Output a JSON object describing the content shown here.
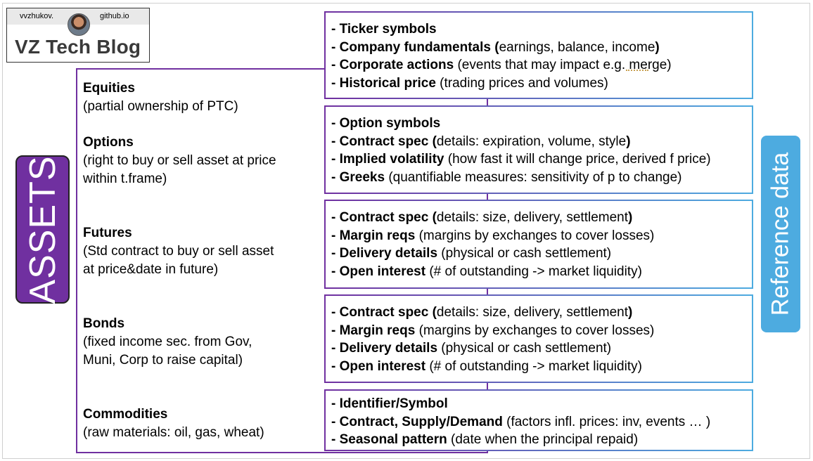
{
  "logo": {
    "handle": "vvzhukov.",
    "domain": "github.io",
    "title": "VZ Tech Blog"
  },
  "assets_label": "ASSETS",
  "reference_label": "Reference data",
  "colors": {
    "purple": "#7030a0",
    "blue": "#4dabe0"
  },
  "assets": [
    {
      "name": "Equities",
      "desc": [
        "(partial ownership of PTC)"
      ]
    },
    {
      "name": "Options",
      "desc": [
        "(right to buy or sell asset at price",
        "within t.frame)"
      ]
    },
    {
      "name": "Futures",
      "desc": [
        "(Std contract to buy or sell asset",
        "at price&date in future)"
      ]
    },
    {
      "name": "Bonds",
      "desc": [
        "(fixed income sec. from Gov,",
        "Muni, Corp to raise capital)"
      ]
    },
    {
      "name": "Commodities",
      "desc": [
        "(raw materials: oil, gas, wheat)"
      ]
    }
  ],
  "details": [
    [
      {
        "bold": "- Ticker symbols",
        "rest": ""
      },
      {
        "bold": "- Company fundamentals (",
        "rest": "earnings, balance, income",
        "close": ")"
      },
      {
        "bold": "- Corporate actions",
        "rest": " (events that may impact e.g. merge)"
      },
      {
        "bold": "- Historical price",
        "rest": " (trading prices and volumes)"
      }
    ],
    [
      {
        "bold": "- Option symbols",
        "rest": ""
      },
      {
        "bold": "- Contract spec (",
        "rest": "details: expiration, volume, style",
        "close": ")"
      },
      {
        "bold": "- Implied volatility",
        "rest": " (how fast it will change price, derived f price)"
      },
      {
        "bold": "- Greeks",
        "rest": " (quantifiable measures: sensitivity of p to change)"
      }
    ],
    [
      {
        "bold": "- Contract spec (",
        "rest": "details: size, delivery, settlement",
        "close": ")"
      },
      {
        "bold": "- Margin reqs",
        "rest": " (margins by exchanges to cover losses)"
      },
      {
        "bold": "- Delivery details",
        "rest": " (physical or cash settlement)"
      },
      {
        "bold": "- Open interest",
        "rest": " (# of outstanding -> market liquidity)"
      }
    ],
    [
      {
        "bold": "- Contract spec (",
        "rest": "details: size, delivery, settlement",
        "close": ")"
      },
      {
        "bold": "- Margin reqs",
        "rest": " (margins by exchanges to cover losses)"
      },
      {
        "bold": "- Delivery details",
        "rest": " (physical or cash settlement)"
      },
      {
        "bold": "- Open interest",
        "rest": " (# of outstanding -> market liquidity)"
      }
    ],
    [
      {
        "bold": "- Identifier/Symbol",
        "rest": ""
      },
      {
        "bold": "- Contract, Supply/Demand",
        "rest": " (factors infl. prices: inv, events … )"
      },
      {
        "bold": "- Seasonal pattern",
        "rest": " (date when the principal repaid)"
      }
    ]
  ]
}
